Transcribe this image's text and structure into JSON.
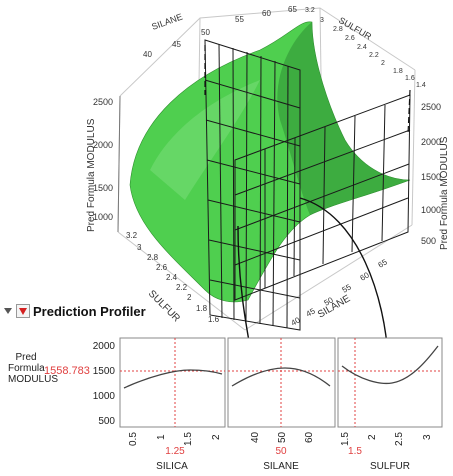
{
  "surface_plot": {
    "z_axis_label_left": "Pred Formula MODULUS",
    "z_axis_label_right": "Pred Formula MODULUS",
    "left_z_ticks": [
      "2500",
      "2000",
      "1500",
      "1000",
      "500"
    ],
    "right_z_ticks": [
      "2500",
      "2000",
      "1500",
      "1000",
      "500"
    ],
    "silane_axis_top": {
      "label": "SILANE",
      "ticks": [
        "65",
        "60",
        "55",
        "50",
        "45",
        "40"
      ]
    },
    "sulfur_axis_top": {
      "label": "SULFUR",
      "ticks": [
        "3.2",
        "3",
        "2.8",
        "2.6",
        "2.4",
        "2.2",
        "2",
        "1.8",
        "1.6",
        "1.4"
      ]
    },
    "sulfur_axis_bottom": {
      "label": "SULFUR",
      "ticks": [
        "3.2",
        "3",
        "2.8",
        "2.6",
        "2.4",
        "2.2",
        "2",
        "1.8",
        "1.6"
      ]
    },
    "silane_axis_bottom": {
      "label": "SILANE",
      "ticks": [
        "65",
        "60",
        "55",
        "50",
        "45",
        "40"
      ]
    },
    "surface_color": "#4fcf4f"
  },
  "profiler": {
    "outline_title": "Prediction Profiler",
    "y_label": "Pred Formula MODULUS",
    "current_value": "1558.783",
    "y_ticks": [
      "2000",
      "1500",
      "1000",
      "500"
    ],
    "value_color": "#e04040",
    "panels": [
      {
        "factor": "SILICA",
        "current": "1.25",
        "x_ticks": [
          "0.5",
          "1",
          "1.5",
          "2"
        ]
      },
      {
        "factor": "SILANE",
        "current": "50",
        "x_ticks": [
          "40",
          "50",
          "60"
        ]
      },
      {
        "factor": "SULFUR",
        "current": "1.5",
        "x_ticks": [
          "1.5",
          "2",
          "2.5",
          "3"
        ]
      }
    ]
  }
}
